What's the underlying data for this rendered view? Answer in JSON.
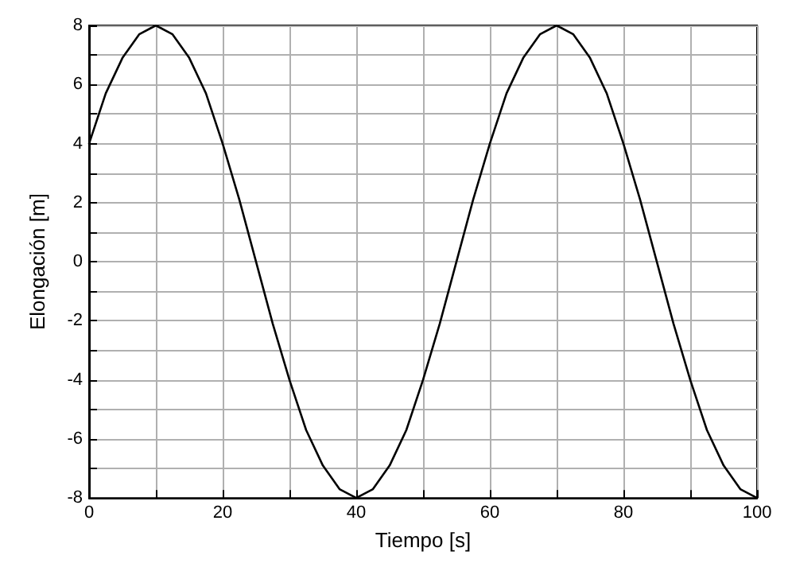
{
  "chart_data": {
    "type": "line",
    "xlabel": "Tiempo [s]",
    "ylabel": "Elongación [m]",
    "x": [
      0,
      2.5,
      5,
      7.5,
      10,
      12.5,
      15,
      17.5,
      20,
      22.5,
      25,
      27.5,
      30,
      32.5,
      35,
      37.5,
      40,
      42.5,
      45,
      47.5,
      50,
      52.5,
      55,
      57.5,
      60,
      62.5,
      65,
      67.5,
      70,
      72.5,
      75,
      77.5,
      80,
      82.5,
      85,
      87.5,
      90,
      92.5,
      95,
      97.5,
      100
    ],
    "series": [
      {
        "color": "#000000",
        "values": [
          4,
          5.7,
          6.9,
          7.7,
          8,
          7.7,
          6.9,
          5.7,
          4,
          2.1,
          0,
          -2.1,
          -4,
          -5.7,
          -6.9,
          -7.7,
          -8,
          -7.7,
          -6.9,
          -5.7,
          -4,
          -2.1,
          0,
          2.1,
          4,
          5.7,
          6.9,
          7.7,
          8,
          7.7,
          6.9,
          5.7,
          4,
          2.1,
          0,
          -2.1,
          -4,
          -5.7,
          -6.9,
          -7.7,
          -8
        ]
      }
    ],
    "xlim": [
      0,
      100
    ],
    "ylim": [
      -8,
      8
    ],
    "xticks": [
      0,
      {
        "value": 10,
        "label": null
      },
      20,
      {
        "value": 30,
        "label": null
      },
      40,
      {
        "value": 50,
        "label": null
      },
      60,
      {
        "value": 70,
        "label": null
      },
      80,
      {
        "value": 90,
        "label": null
      },
      100
    ],
    "yticks": [
      -8,
      {
        "value": -7,
        "label": null
      },
      -6,
      {
        "value": -5,
        "label": null
      },
      -4,
      {
        "value": -3,
        "label": null
      },
      -2,
      {
        "value": -1,
        "label": null
      },
      0,
      {
        "value": 1,
        "label": null
      },
      2,
      {
        "value": 3,
        "label": null
      },
      4,
      {
        "value": 5,
        "label": null
      },
      6,
      {
        "value": 7,
        "label": null
      },
      8
    ],
    "grid": true,
    "marker": "none",
    "line_style": "solid"
  }
}
